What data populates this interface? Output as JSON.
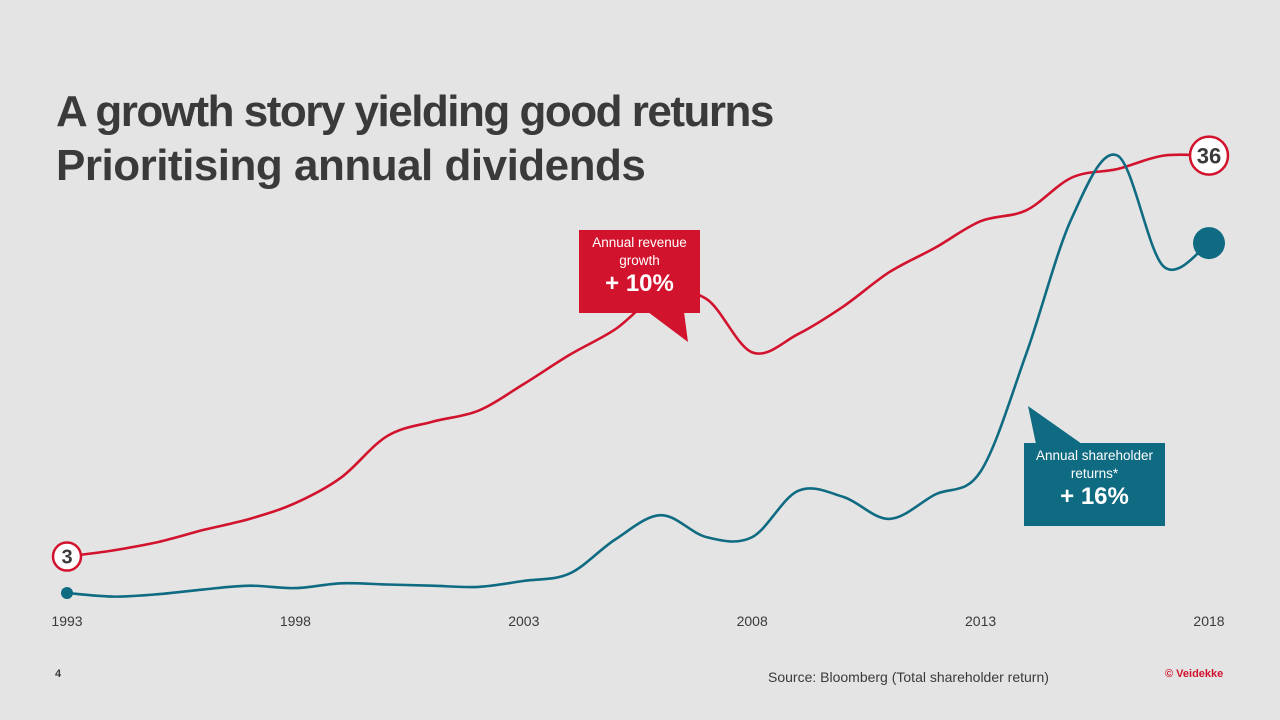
{
  "title": "A growth story yielding good returns",
  "subtitle": "Prioritising annual dividends",
  "callouts": {
    "revenue": {
      "label": "Annual revenue growth",
      "value": "+ 10%"
    },
    "returns": {
      "label": "Annual shareholder returns*",
      "value": "+ 16%"
    }
  },
  "footer": {
    "page_number": "4",
    "source": "Source: Bloomberg (Total shareholder return)",
    "brand": "© Veidekke"
  },
  "colors": {
    "revenue": "#d2132e",
    "returns": "#0f6b82",
    "background": "#e4e4e4",
    "text": "#3a3a3a"
  },
  "chart_data": {
    "type": "line",
    "x": [
      1993,
      1994,
      1995,
      1996,
      1997,
      1998,
      1999,
      2000,
      2001,
      2002,
      2003,
      2004,
      2005,
      2006,
      2007,
      2008,
      2009,
      2010,
      2011,
      2012,
      2013,
      2014,
      2015,
      2016,
      2017,
      2018
    ],
    "xticks": [
      "1993",
      "1998",
      "2003",
      "2008",
      "2013",
      "2018"
    ],
    "xlim": [
      1993,
      2018
    ],
    "ylim": [
      0,
      40
    ],
    "grid": false,
    "legend": "none",
    "series": [
      {
        "key": "revenue",
        "values": [
          3.0,
          3.5,
          4.2,
          5.2,
          6.1,
          7.4,
          9.5,
          12.9,
          14.1,
          15.0,
          17.2,
          19.6,
          21.7,
          24.6,
          24.2,
          19.8,
          21.3,
          23.6,
          26.4,
          28.4,
          30.6,
          31.5,
          34.2,
          34.9,
          36.0,
          36.0
        ],
        "start_label": "3",
        "end_label": "36"
      },
      {
        "key": "returns",
        "values": [
          0.0,
          -0.3,
          -0.1,
          0.3,
          0.6,
          0.4,
          0.8,
          0.7,
          0.6,
          0.5,
          1.0,
          1.6,
          4.4,
          6.4,
          4.6,
          4.6,
          8.4,
          7.9,
          6.1,
          8.1,
          10.0,
          19.7,
          30.9,
          36.0,
          26.9,
          28.8
        ]
      }
    ]
  }
}
